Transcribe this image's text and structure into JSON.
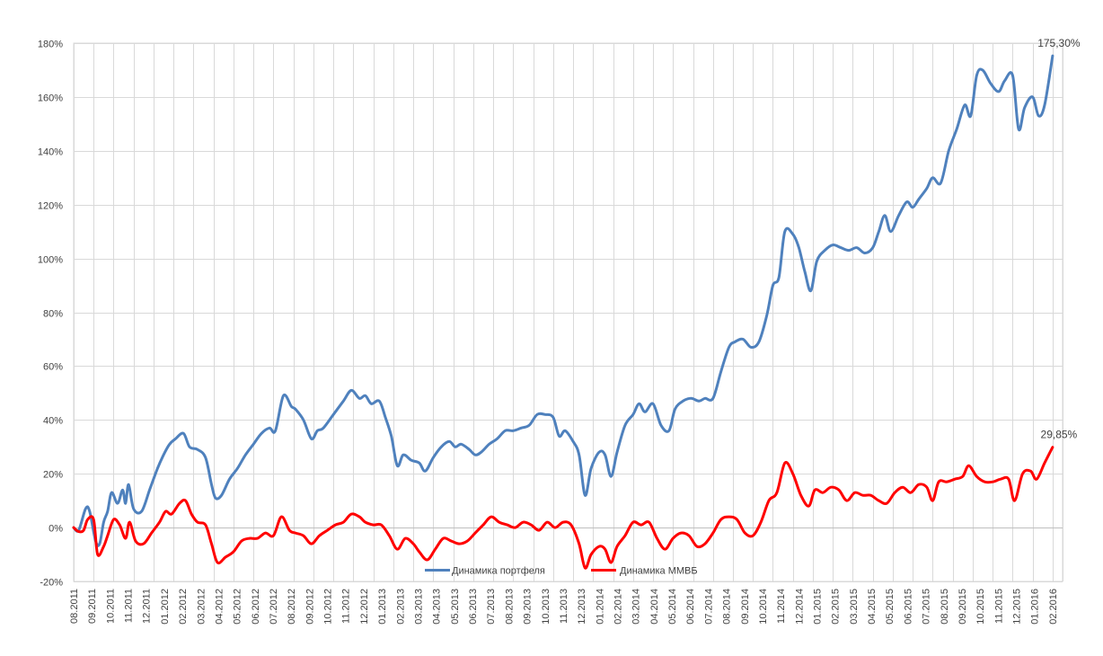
{
  "chart_data": {
    "type": "line",
    "title": "",
    "xlabel": "",
    "ylabel": "",
    "ylim": [
      -20,
      180
    ],
    "y_ticks": [
      "-20%",
      "0%",
      "20%",
      "40%",
      "60%",
      "80%",
      "100%",
      "120%",
      "140%",
      "160%",
      "180%"
    ],
    "grid": "on",
    "legend_position": "bottom",
    "categories": [
      "08.2011",
      "09.2011",
      "10.2011",
      "11.2011",
      "12.2011",
      "01.2012",
      "02.2012",
      "03.2012",
      "04.2012",
      "05.2012",
      "06.2012",
      "07.2012",
      "08.2012",
      "09.2012",
      "10.2012",
      "11.2012",
      "12.2012",
      "01.2013",
      "02.2013",
      "03.2013",
      "04.2013",
      "05.2013",
      "06.2013",
      "07.2013",
      "08.2013",
      "09.2013",
      "10.2013",
      "11.2013",
      "12.2013",
      "01.2014",
      "02.2014",
      "03.2014",
      "04.2014",
      "05.2014",
      "06.2014",
      "07.2014",
      "08.2014",
      "09.2014",
      "10.2014",
      "11.2014",
      "12.2014",
      "01.2015",
      "02.2015",
      "03.2015",
      "04.2015",
      "05.2015",
      "06.2015",
      "07.2015",
      "08.2015",
      "09.2015",
      "10.2015",
      "11.2015",
      "12.2015",
      "01.2016",
      "02.2016"
    ],
    "series": [
      {
        "name": "Динамика портфеля",
        "color": "#4f81bd",
        "end_label": "175,30%",
        "points": [
          [
            0,
            0
          ],
          [
            0.25,
            -1
          ],
          [
            0.6,
            7
          ],
          [
            0.8,
            6
          ],
          [
            1.1,
            -5
          ],
          [
            1.3,
            -6
          ],
          [
            1.5,
            2
          ],
          [
            1.7,
            6
          ],
          [
            1.9,
            13
          ],
          [
            2.2,
            9
          ],
          [
            2.45,
            14
          ],
          [
            2.6,
            9
          ],
          [
            2.75,
            16
          ],
          [
            3.0,
            7
          ],
          [
            3.4,
            6
          ],
          [
            3.8,
            14
          ],
          [
            4.2,
            22
          ],
          [
            4.5,
            27
          ],
          [
            4.8,
            31
          ],
          [
            5.1,
            33
          ],
          [
            5.5,
            35
          ],
          [
            5.8,
            30
          ],
          [
            6.2,
            29
          ],
          [
            6.6,
            26
          ],
          [
            6.9,
            16
          ],
          [
            7.1,
            11
          ],
          [
            7.4,
            12
          ],
          [
            7.8,
            18
          ],
          [
            8.2,
            22
          ],
          [
            8.6,
            27
          ],
          [
            9.0,
            31
          ],
          [
            9.4,
            35
          ],
          [
            9.8,
            37
          ],
          [
            10.1,
            36
          ],
          [
            10.5,
            49
          ],
          [
            10.9,
            45
          ],
          [
            11.1,
            44
          ],
          [
            11.5,
            40
          ],
          [
            11.9,
            33
          ],
          [
            12.2,
            36
          ],
          [
            12.5,
            37
          ],
          [
            13.0,
            42
          ],
          [
            13.5,
            47
          ],
          [
            13.9,
            51
          ],
          [
            14.3,
            48
          ],
          [
            14.6,
            49
          ],
          [
            14.9,
            46
          ],
          [
            15.3,
            47
          ],
          [
            15.6,
            41
          ],
          [
            15.9,
            34
          ],
          [
            16.2,
            23
          ],
          [
            16.5,
            27
          ],
          [
            16.9,
            25
          ],
          [
            17.3,
            24
          ],
          [
            17.6,
            21
          ],
          [
            18.0,
            26
          ],
          [
            18.4,
            30
          ],
          [
            18.8,
            32
          ],
          [
            19.1,
            30
          ],
          [
            19.4,
            31
          ],
          [
            19.8,
            29
          ],
          [
            20.1,
            27
          ],
          [
            20.4,
            28
          ],
          [
            20.8,
            31
          ],
          [
            21.2,
            33
          ],
          [
            21.6,
            36
          ],
          [
            22.0,
            36
          ],
          [
            22.4,
            37
          ],
          [
            22.8,
            38
          ],
          [
            23.2,
            42
          ],
          [
            23.6,
            42
          ],
          [
            24.0,
            41
          ],
          [
            24.3,
            34
          ],
          [
            24.6,
            36
          ],
          [
            25.0,
            32
          ],
          [
            25.3,
            27
          ],
          [
            25.6,
            12
          ],
          [
            25.9,
            22
          ],
          [
            26.3,
            28
          ],
          [
            26.6,
            27
          ],
          [
            26.9,
            19
          ],
          [
            27.2,
            28
          ],
          [
            27.6,
            38
          ],
          [
            28.0,
            42
          ],
          [
            28.3,
            46
          ],
          [
            28.6,
            43
          ],
          [
            29.0,
            46
          ],
          [
            29.4,
            38
          ],
          [
            29.8,
            36
          ],
          [
            30.1,
            44
          ],
          [
            30.5,
            47
          ],
          [
            30.9,
            48
          ],
          [
            31.3,
            47
          ],
          [
            31.6,
            48
          ],
          [
            32.0,
            48
          ],
          [
            32.4,
            58
          ],
          [
            32.8,
            67
          ],
          [
            33.1,
            69
          ],
          [
            33.5,
            70
          ],
          [
            33.9,
            67
          ],
          [
            34.3,
            69
          ],
          [
            34.7,
            79
          ],
          [
            35.0,
            90
          ],
          [
            35.3,
            93
          ],
          [
            35.6,
            110
          ],
          [
            36.0,
            109
          ],
          [
            36.3,
            104
          ],
          [
            36.6,
            95
          ],
          [
            36.9,
            88
          ],
          [
            37.2,
            99
          ],
          [
            37.6,
            103
          ],
          [
            38.0,
            105
          ],
          [
            38.4,
            104
          ],
          [
            38.8,
            103
          ],
          [
            39.2,
            104
          ],
          [
            39.6,
            102
          ],
          [
            40.0,
            104
          ],
          [
            40.3,
            110
          ],
          [
            40.6,
            116
          ],
          [
            40.9,
            110
          ],
          [
            41.3,
            116
          ],
          [
            41.7,
            121
          ],
          [
            42.0,
            119
          ],
          [
            42.3,
            122
          ],
          [
            42.7,
            126
          ],
          [
            43.0,
            130
          ],
          [
            43.4,
            128
          ],
          [
            43.8,
            140
          ],
          [
            44.2,
            148
          ],
          [
            44.6,
            157
          ],
          [
            44.9,
            153
          ],
          [
            45.2,
            168
          ],
          [
            45.5,
            170
          ],
          [
            45.9,
            165
          ],
          [
            46.3,
            162
          ],
          [
            46.6,
            166
          ],
          [
            47.0,
            168
          ],
          [
            47.3,
            148
          ],
          [
            47.6,
            156
          ],
          [
            48.0,
            160
          ],
          [
            48.3,
            153
          ],
          [
            48.6,
            157
          ],
          [
            49.0,
            175.3
          ]
        ]
      },
      {
        "name": "Динамика ММВБ",
        "color": "#ff0000",
        "end_label": "29,85%",
        "points": [
          [
            0,
            0
          ],
          [
            0.25,
            -1.5
          ],
          [
            0.5,
            -1
          ],
          [
            0.7,
            3
          ],
          [
            1.0,
            3
          ],
          [
            1.2,
            -10
          ],
          [
            1.5,
            -7
          ],
          [
            1.7,
            -3
          ],
          [
            2.0,
            3
          ],
          [
            2.3,
            1
          ],
          [
            2.6,
            -4
          ],
          [
            2.8,
            2
          ],
          [
            3.1,
            -5
          ],
          [
            3.5,
            -6
          ],
          [
            3.9,
            -2
          ],
          [
            4.3,
            2
          ],
          [
            4.6,
            6
          ],
          [
            4.9,
            5
          ],
          [
            5.3,
            9
          ],
          [
            5.6,
            10
          ],
          [
            5.9,
            5
          ],
          [
            6.2,
            2
          ],
          [
            6.6,
            1
          ],
          [
            6.9,
            -6
          ],
          [
            7.2,
            -13
          ],
          [
            7.6,
            -11
          ],
          [
            8.0,
            -9
          ],
          [
            8.4,
            -5
          ],
          [
            8.8,
            -4
          ],
          [
            9.2,
            -4
          ],
          [
            9.6,
            -2
          ],
          [
            10.0,
            -3
          ],
          [
            10.4,
            4
          ],
          [
            10.8,
            -1
          ],
          [
            11.1,
            -2
          ],
          [
            11.5,
            -3
          ],
          [
            11.9,
            -6
          ],
          [
            12.3,
            -3
          ],
          [
            12.7,
            -1
          ],
          [
            13.1,
            1
          ],
          [
            13.5,
            2
          ],
          [
            13.9,
            5
          ],
          [
            14.3,
            4
          ],
          [
            14.6,
            2
          ],
          [
            15.0,
            1
          ],
          [
            15.4,
            1
          ],
          [
            15.8,
            -3
          ],
          [
            16.2,
            -8
          ],
          [
            16.6,
            -4
          ],
          [
            17.0,
            -6
          ],
          [
            17.3,
            -9
          ],
          [
            17.7,
            -12
          ],
          [
            18.1,
            -8
          ],
          [
            18.5,
            -4
          ],
          [
            18.9,
            -5
          ],
          [
            19.3,
            -6
          ],
          [
            19.7,
            -5
          ],
          [
            20.1,
            -2
          ],
          [
            20.5,
            1
          ],
          [
            20.9,
            4
          ],
          [
            21.3,
            2
          ],
          [
            21.7,
            1
          ],
          [
            22.1,
            0
          ],
          [
            22.5,
            2
          ],
          [
            22.9,
            1
          ],
          [
            23.3,
            -1
          ],
          [
            23.7,
            2
          ],
          [
            24.1,
            0
          ],
          [
            24.5,
            2
          ],
          [
            24.9,
            1
          ],
          [
            25.3,
            -6
          ],
          [
            25.6,
            -15
          ],
          [
            25.9,
            -10
          ],
          [
            26.3,
            -7
          ],
          [
            26.6,
            -8
          ],
          [
            26.9,
            -13
          ],
          [
            27.2,
            -7
          ],
          [
            27.6,
            -3
          ],
          [
            28.0,
            2
          ],
          [
            28.4,
            1
          ],
          [
            28.8,
            2
          ],
          [
            29.2,
            -4
          ],
          [
            29.6,
            -8
          ],
          [
            30.0,
            -4
          ],
          [
            30.4,
            -2
          ],
          [
            30.8,
            -3
          ],
          [
            31.2,
            -7
          ],
          [
            31.6,
            -6
          ],
          [
            32.0,
            -2
          ],
          [
            32.4,
            3
          ],
          [
            32.8,
            4
          ],
          [
            33.2,
            3
          ],
          [
            33.6,
            -2
          ],
          [
            34.0,
            -3
          ],
          [
            34.4,
            2
          ],
          [
            34.8,
            10
          ],
          [
            35.2,
            13
          ],
          [
            35.6,
            24
          ],
          [
            36.0,
            20
          ],
          [
            36.4,
            12
          ],
          [
            36.8,
            8
          ],
          [
            37.1,
            14
          ],
          [
            37.5,
            13
          ],
          [
            37.9,
            15
          ],
          [
            38.3,
            14
          ],
          [
            38.7,
            10
          ],
          [
            39.1,
            13
          ],
          [
            39.5,
            12
          ],
          [
            39.9,
            12
          ],
          [
            40.3,
            10
          ],
          [
            40.7,
            9
          ],
          [
            41.1,
            13
          ],
          [
            41.5,
            15
          ],
          [
            41.9,
            13
          ],
          [
            42.3,
            16
          ],
          [
            42.7,
            15
          ],
          [
            43.0,
            10
          ],
          [
            43.3,
            17
          ],
          [
            43.7,
            17
          ],
          [
            44.1,
            18
          ],
          [
            44.5,
            19
          ],
          [
            44.8,
            23
          ],
          [
            45.2,
            19
          ],
          [
            45.6,
            17
          ],
          [
            46.0,
            17
          ],
          [
            46.4,
            18
          ],
          [
            46.8,
            18
          ],
          [
            47.1,
            10
          ],
          [
            47.5,
            20
          ],
          [
            47.9,
            21
          ],
          [
            48.2,
            18
          ],
          [
            48.6,
            24
          ],
          [
            49.0,
            29.85
          ]
        ]
      }
    ]
  }
}
